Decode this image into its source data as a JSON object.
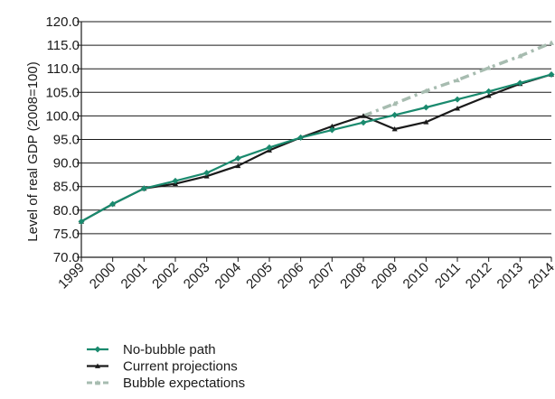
{
  "chart_data": {
    "type": "line",
    "ylabel": "Level of real GDP (2008=100)",
    "xlabel": "",
    "ylim": [
      70,
      120
    ],
    "yticks": [
      "70.0",
      "75.0",
      "80.0",
      "85.0",
      "90.0",
      "95.0",
      "100.0",
      "105.0",
      "110.0",
      "115.0",
      "120.0"
    ],
    "categories": [
      "1999",
      "2000",
      "2001",
      "2002",
      "2003",
      "2004",
      "2005",
      "2006",
      "2007",
      "2008",
      "2009",
      "2010",
      "2011",
      "2012",
      "2013",
      "2014"
    ],
    "grid": "horizontal",
    "legend_position": "bottom-left",
    "series": [
      {
        "name": "No-bubble path",
        "color": "#1a8a6e",
        "marker": "diamond",
        "style": "solid",
        "values": [
          77.6,
          81.3,
          84.6,
          86.2,
          87.9,
          91.0,
          93.3,
          95.4,
          97.0,
          98.6,
          100.2,
          101.8,
          103.5,
          105.2,
          107.0,
          108.8
        ]
      },
      {
        "name": "Current projections",
        "color": "#1a1a1a",
        "marker": "triangle",
        "style": "solid",
        "values": [
          77.6,
          81.3,
          84.6,
          85.6,
          87.2,
          89.4,
          92.7,
          95.4,
          97.8,
          100.0,
          97.2,
          98.7,
          101.6,
          104.3,
          106.8,
          108.8
        ]
      },
      {
        "name": "Bubble expectations",
        "color": "#a7bcb0",
        "marker": "triangle",
        "style": "dashed",
        "values": [
          null,
          null,
          null,
          null,
          null,
          null,
          null,
          null,
          null,
          100.0,
          102.6,
          105.3,
          107.6,
          110.2,
          112.7,
          115.5
        ]
      }
    ]
  }
}
